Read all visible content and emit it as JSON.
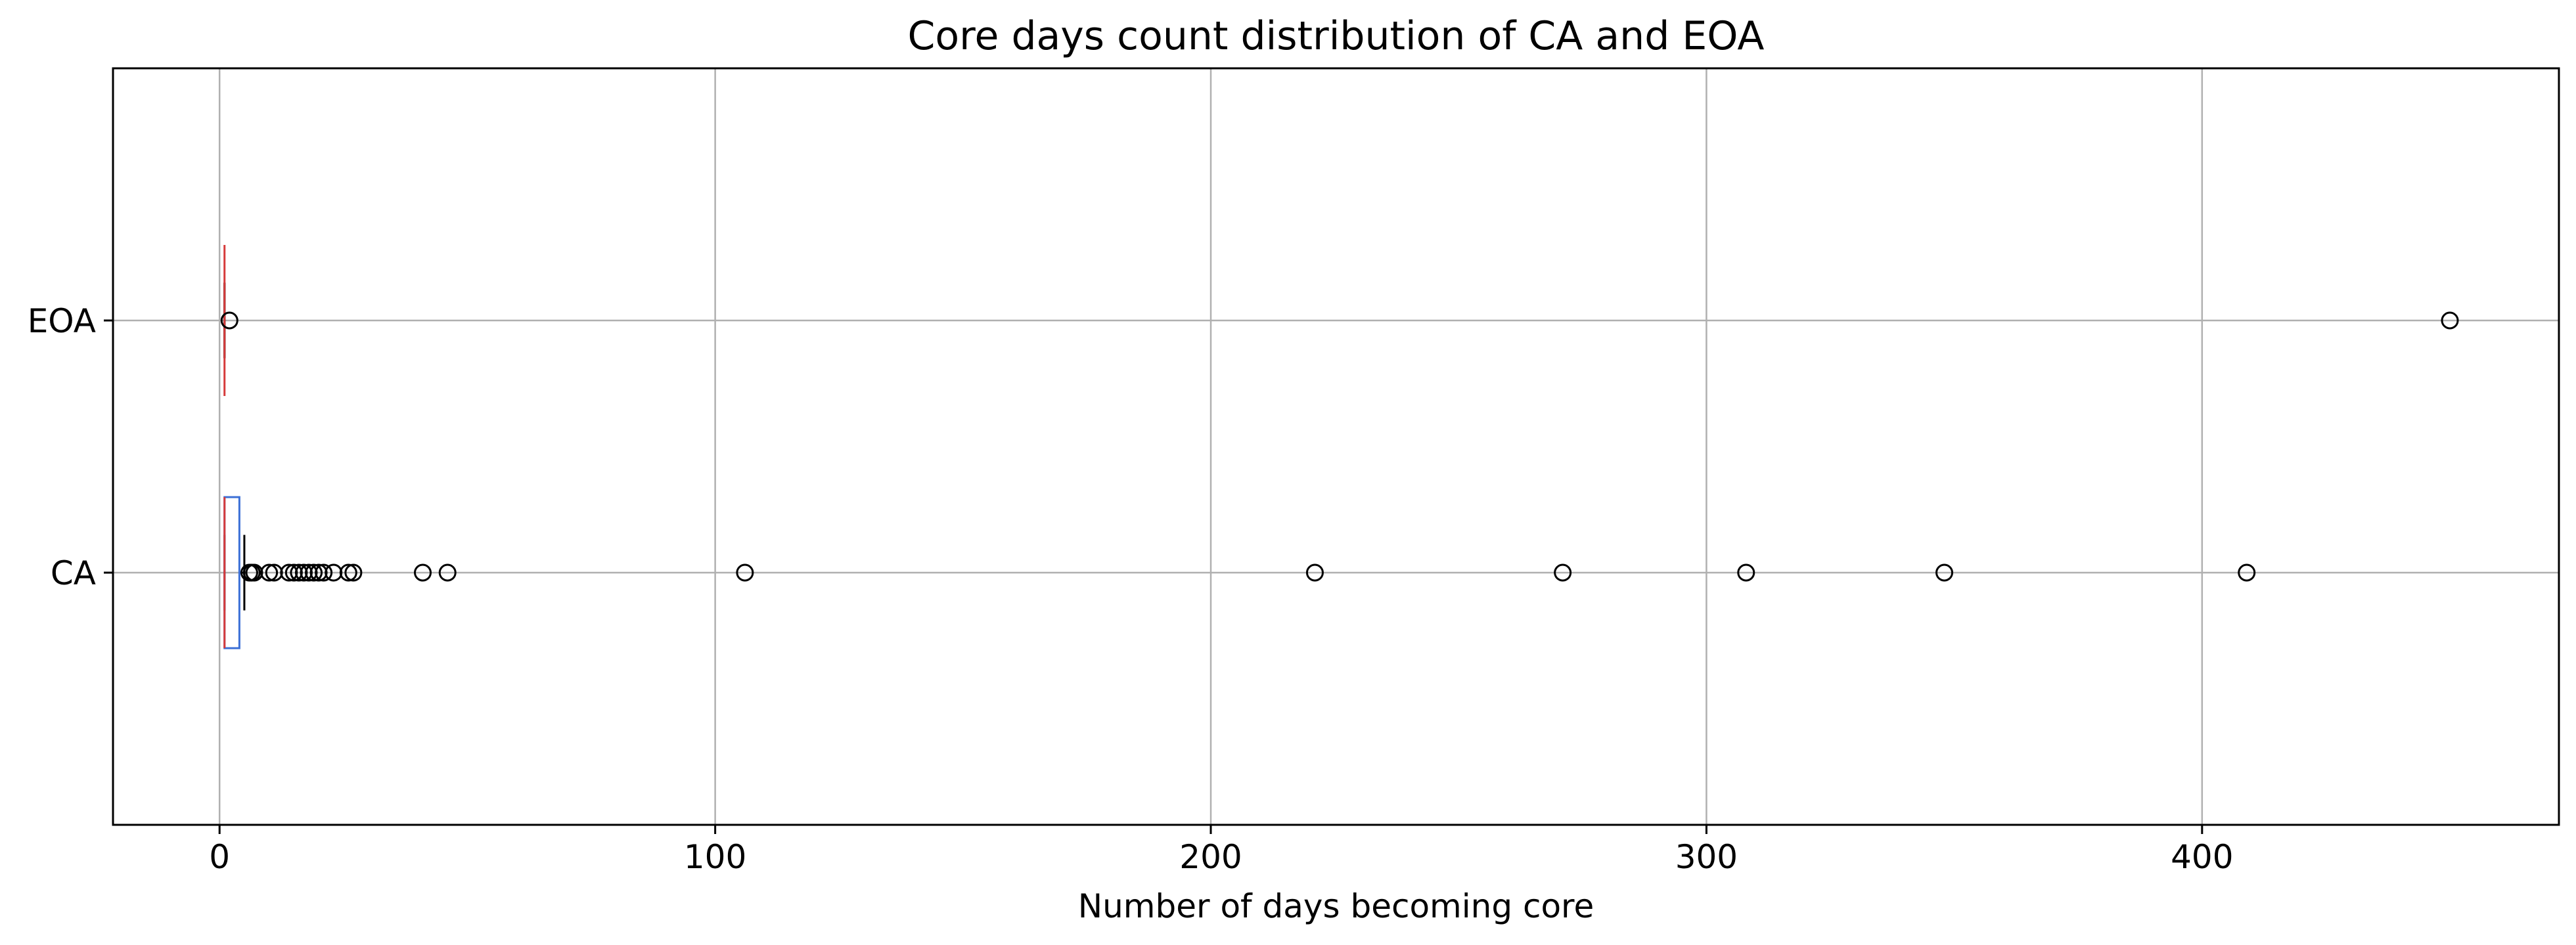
{
  "chart_data": {
    "type": "boxplot",
    "orientation": "horizontal",
    "title": "Core days count distribution of CA and EOA",
    "xlabel": "Number of days becoming core",
    "ylabel": "",
    "xlim": [
      -21.5,
      472
    ],
    "x_ticks": [
      0,
      100,
      200,
      300,
      400
    ],
    "x_tick_labels": [
      "0",
      "100",
      "200",
      "300",
      "400"
    ],
    "grid": true,
    "legend": "none",
    "colors": {
      "box": "#3b6fd6",
      "median": "#d63b3b",
      "whisker": "#000000",
      "grid": "#b0b0b0",
      "outlier_edge": "#000000"
    },
    "categories": [
      "CA",
      "EOA"
    ],
    "series": [
      {
        "category": "CA",
        "whisker_low": 1,
        "q1": 1,
        "median": 1,
        "q3": 4,
        "whisker_high": 5,
        "outliers": [
          6,
          6.5,
          7,
          10,
          11,
          14,
          15,
          16,
          17,
          18,
          19,
          20,
          21,
          23,
          26,
          27,
          41,
          46,
          106,
          221,
          271,
          308,
          348,
          409
        ]
      },
      {
        "category": "EOA",
        "whisker_low": 1,
        "q1": 1,
        "median": 1,
        "q3": 1,
        "whisker_high": 1,
        "outliers": [
          2,
          450
        ]
      }
    ]
  }
}
